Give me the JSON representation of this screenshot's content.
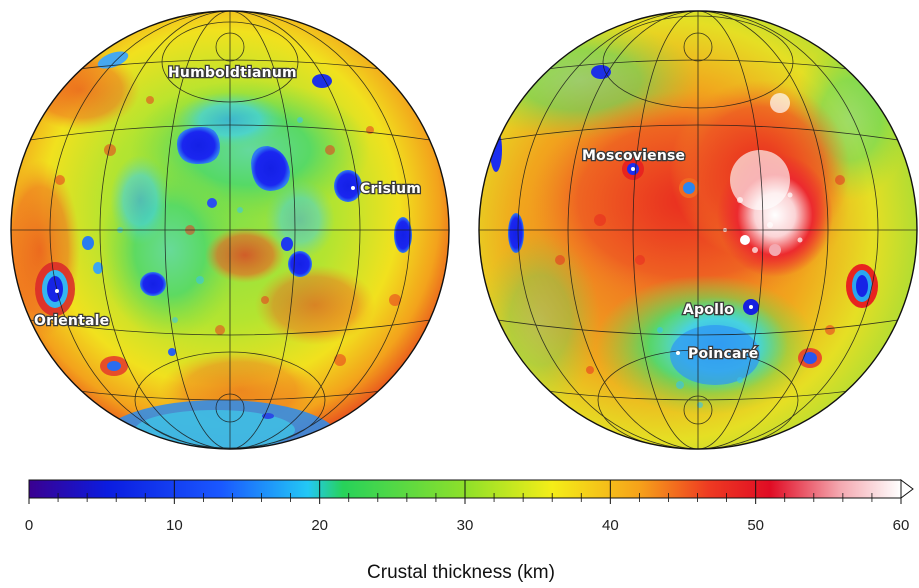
{
  "figure": {
    "near_side_labels": [
      "Humboldtianum",
      "Crisium",
      "Orientale"
    ],
    "far_side_labels": [
      "Moscoviense",
      "Apollo",
      "Poincaré"
    ]
  },
  "colorbar": {
    "title": "Crustal thickness (km)",
    "min": 0,
    "max": 60,
    "ticks": [
      "0",
      "10",
      "20",
      "30",
      "40",
      "50",
      "60"
    ],
    "colors": [
      "#3a0090",
      "#0b1ce0",
      "#1a58ff",
      "#23c8f5",
      "#27d25a",
      "#8ee02a",
      "#f4ee18",
      "#f6a21a",
      "#ee3a22",
      "#e00c24",
      "#f4a8b0",
      "#ffffff"
    ]
  }
}
